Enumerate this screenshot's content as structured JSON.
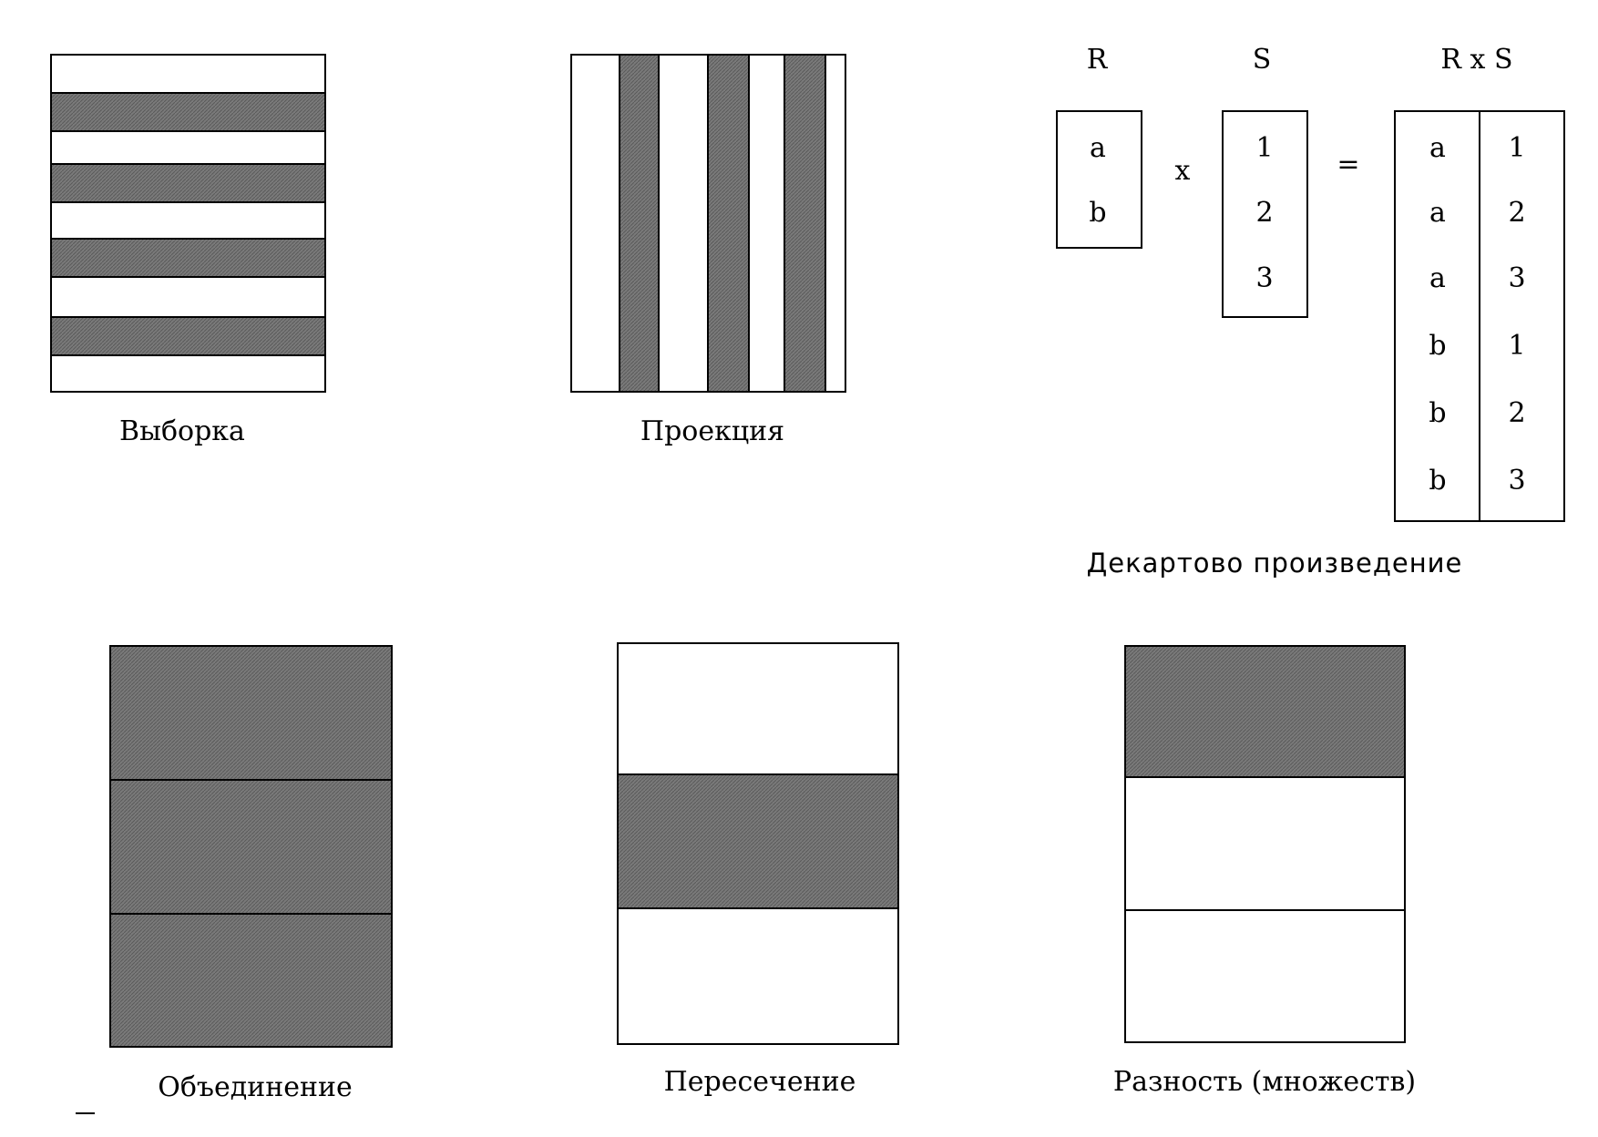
{
  "colors": {
    "shade": "#6e6e6e",
    "stroke": "#000000",
    "background": "#ffffff"
  },
  "selection": {
    "label": "Выборка"
  },
  "projection": {
    "label": "Проекция"
  },
  "cartesian": {
    "label": "Декартово произведение",
    "r_header": "R",
    "s_header": "S",
    "rxs_header": "R x S",
    "times_sign": "x",
    "equals_sign": "=",
    "r_values": [
      "a",
      "b"
    ],
    "s_values": [
      "1",
      "2",
      "3"
    ],
    "rxs_rows": [
      [
        "a",
        "1"
      ],
      [
        "a",
        "2"
      ],
      [
        "a",
        "3"
      ],
      [
        "b",
        "1"
      ],
      [
        "b",
        "2"
      ],
      [
        "b",
        "3"
      ]
    ]
  },
  "union": {
    "label": "Объединение"
  },
  "intersection": {
    "label": "Пересечение"
  },
  "difference": {
    "label": "Разность (множеств)"
  }
}
